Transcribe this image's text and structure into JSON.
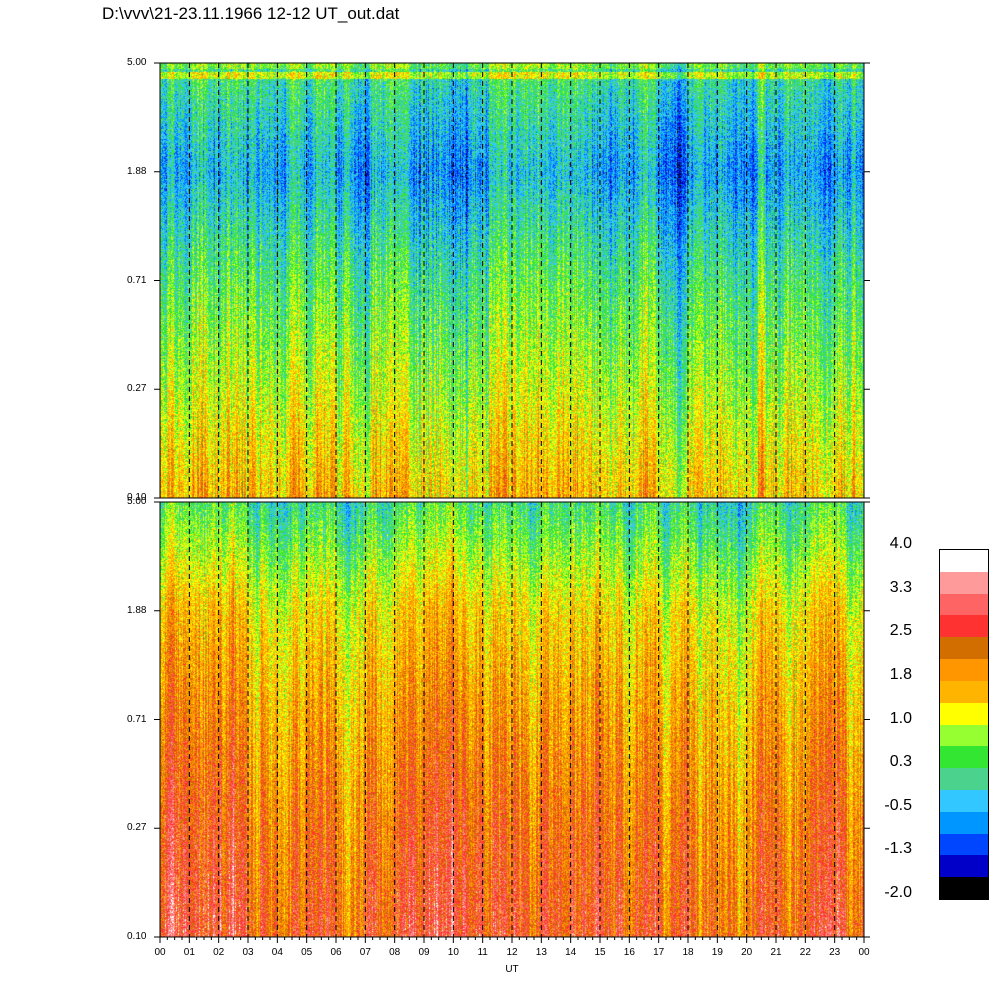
{
  "title": "D:\\vvv\\21-23.11.1966  12-12 UT_out.dat",
  "chart_data": [
    {
      "type": "heatmap",
      "panel": "top",
      "x_ticks": [
        "00",
        "01",
        "02",
        "03",
        "04",
        "05",
        "06",
        "07",
        "08",
        "09",
        "10",
        "11",
        "12",
        "13",
        "14",
        "15",
        "16",
        "17",
        "18",
        "19",
        "20",
        "21",
        "22",
        "23",
        "00"
      ],
      "y_ticks": [
        "5.00",
        "1.88",
        "0.71",
        "0.27",
        "0.10"
      ],
      "y_scale": "log",
      "ylim": [
        0.1,
        5.0
      ],
      "xlim_hours": [
        0,
        24
      ],
      "value_range": [
        -2.0,
        4.0
      ],
      "profile": {
        "levels_at_y_ticks": [
          0.2,
          -0.5,
          0.3,
          0.9,
          1.6
        ]
      }
    },
    {
      "type": "heatmap",
      "panel": "bottom",
      "x_ticks": [
        "00",
        "01",
        "02",
        "03",
        "04",
        "05",
        "06",
        "07",
        "08",
        "09",
        "10",
        "11",
        "12",
        "13",
        "14",
        "15",
        "16",
        "17",
        "18",
        "19",
        "20",
        "21",
        "22",
        "23",
        "00"
      ],
      "y_ticks": [
        "5.00",
        "1.88",
        "0.71",
        "0.27",
        "0.10"
      ],
      "y_scale": "log",
      "ylim": [
        0.1,
        5.0
      ],
      "xlim_hours": [
        0,
        24
      ],
      "value_range": [
        -2.0,
        4.0
      ],
      "xlabel": "UT",
      "profile": {
        "levels_at_y_ticks": [
          0.2,
          1.4,
          1.9,
          2.3,
          2.6
        ]
      }
    }
  ],
  "colorbar": {
    "labels": [
      "4.0",
      "3.3",
      "2.5",
      "1.8",
      "1.0",
      "0.3",
      "-0.5",
      "-1.3",
      "-2.0"
    ],
    "colors": [
      "#ffffff",
      "#ff9a9a",
      "#ff6464",
      "#ff3232",
      "#d26e00",
      "#ff9600",
      "#ffb400",
      "#ffff00",
      "#96ff32",
      "#32e632",
      "#4bd28c",
      "#32c8ff",
      "#0096ff",
      "#0046ff",
      "#0000c8",
      "#000000"
    ]
  }
}
